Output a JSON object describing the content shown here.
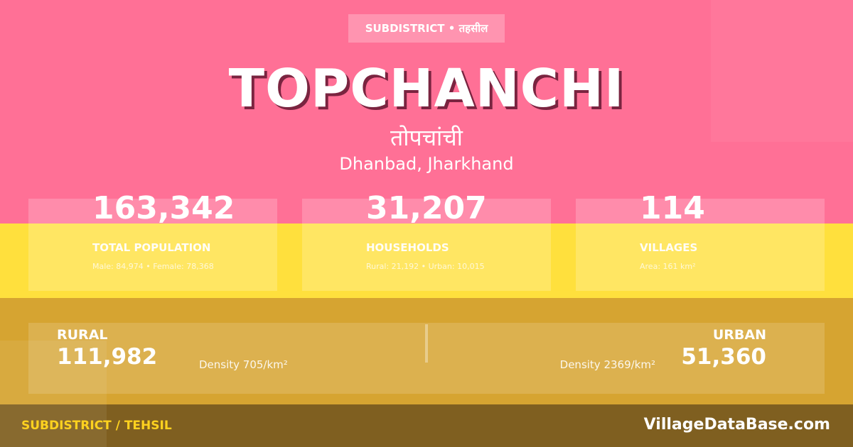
{
  "colors": {
    "pink": "#ff7096",
    "yellow": "#ffe03d",
    "gold": "#d6a431",
    "dark": "#7f5f20",
    "accent": "#ffd21f"
  },
  "badge": "SUBDISTRICT • तहसील",
  "title": "TOPCHANCHI",
  "title_hindi": "तोपचांची",
  "location": "Dhanbad, Jharkhand",
  "stats": [
    {
      "value": "163,342",
      "label": "TOTAL POPULATION",
      "sub": "Male: 84,974 • Female: 78,368"
    },
    {
      "value": "31,207",
      "label": "HOUSEHOLDS",
      "sub": "Rural: 21,192 • Urban: 10,015"
    },
    {
      "value": "114",
      "label": "VILLAGES",
      "sub": "Area: 161 km²"
    }
  ],
  "rural": {
    "label": "RURAL",
    "value": "111,982",
    "density": "Density 705/km²"
  },
  "urban": {
    "label": "URBAN",
    "value": "51,360",
    "density": "Density 2369/km²"
  },
  "footer": {
    "left": "SUBDISTRICT / TEHSIL",
    "right": "VillageDataBase.com"
  }
}
